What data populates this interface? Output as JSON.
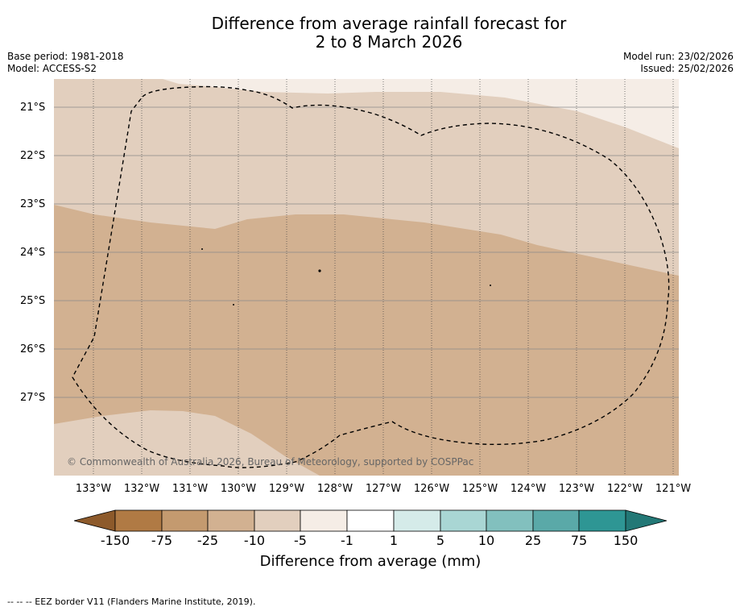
{
  "header": {
    "title_line1": "Difference from average rainfall forecast for",
    "title_line2": "2 to 8 March 2026",
    "base_period": "Base period: 1981-2018",
    "model": "Model: ACCESS-S2",
    "model_run": "Model run: 23/02/2026",
    "issued": "Issued: 25/02/2026"
  },
  "map": {
    "copyright": "© Commonwealth of Australia 2026, Bureau of Meteorology, supported by COSPPac",
    "lat_labels": [
      "21°S",
      "22°S",
      "23°S",
      "24°S",
      "25°S",
      "26°S",
      "27°S"
    ],
    "lon_labels": [
      "133°W",
      "132°W",
      "131°W",
      "130°W",
      "129°W",
      "128°W",
      "127°W",
      "126°W",
      "125°W",
      "124°W",
      "123°W",
      "122°W",
      "121°W"
    ],
    "lat_range": [
      -28.6,
      -20.4
    ],
    "lon_range": [
      -133.8,
      -120.9
    ],
    "dominant_categories": [
      "-25 to -10",
      "-10 to -5",
      "-5 to -1"
    ],
    "eez_label": "EEZ border V11"
  },
  "legend": {
    "ticks": [
      "-150",
      "-75",
      "-25",
      "-10",
      "-5",
      "-1",
      "1",
      "5",
      "10",
      "25",
      "75",
      "150"
    ],
    "colors": [
      "#8d5a2b",
      "#b07a44",
      "#c49a6f",
      "#d2b191",
      "#e2cfbe",
      "#f5ede6",
      "#ffffff",
      "#d5ebe9",
      "#a9d6d4",
      "#82c0be",
      "#5aa9a8",
      "#2e9694",
      "#237876"
    ],
    "label": "Difference from average (mm)"
  },
  "footer": {
    "note": "--  --  -- EEZ border V11 (Flanders Marine Institute, 2019)."
  }
}
